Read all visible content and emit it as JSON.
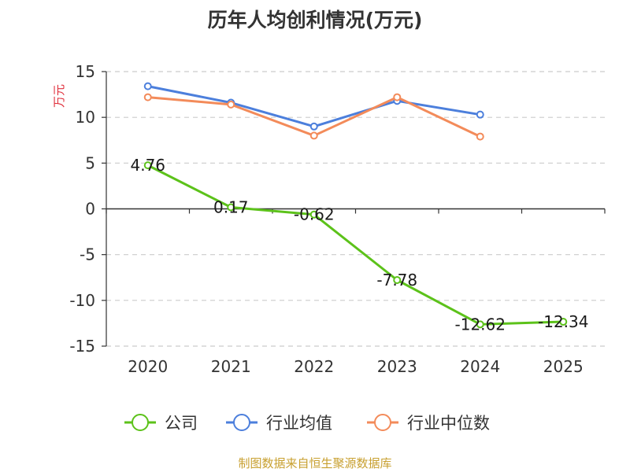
{
  "chart_data": {
    "type": "line",
    "title": "历年人均创利情况(万元)",
    "ylabel": "万元",
    "xlabel": "",
    "categories": [
      "2020",
      "2021",
      "2022",
      "2023",
      "2024",
      "2025"
    ],
    "ylim": [
      -15,
      15
    ],
    "yticks": [
      15,
      10,
      5,
      0,
      -5,
      -10,
      -15
    ],
    "grid": true,
    "legend_position": "bottom",
    "series": [
      {
        "name": "公司",
        "values": [
          4.76,
          0.17,
          -0.62,
          -7.78,
          -12.62,
          -12.34
        ],
        "labels": [
          "4.76",
          "0.17",
          "-0.62",
          "-7.78",
          "-12.62",
          "-12.34"
        ],
        "color": "#5cc21a"
      },
      {
        "name": "行业均值",
        "values": [
          13.4,
          11.6,
          9.0,
          11.8,
          10.3,
          null
        ],
        "color": "#4c7fdc"
      },
      {
        "name": "行业中位数",
        "values": [
          12.2,
          11.4,
          8.0,
          12.2,
          7.9,
          null
        ],
        "color": "#f38b5a"
      }
    ]
  },
  "footer": {
    "source": "制图数据来自恒生聚源数据库"
  }
}
